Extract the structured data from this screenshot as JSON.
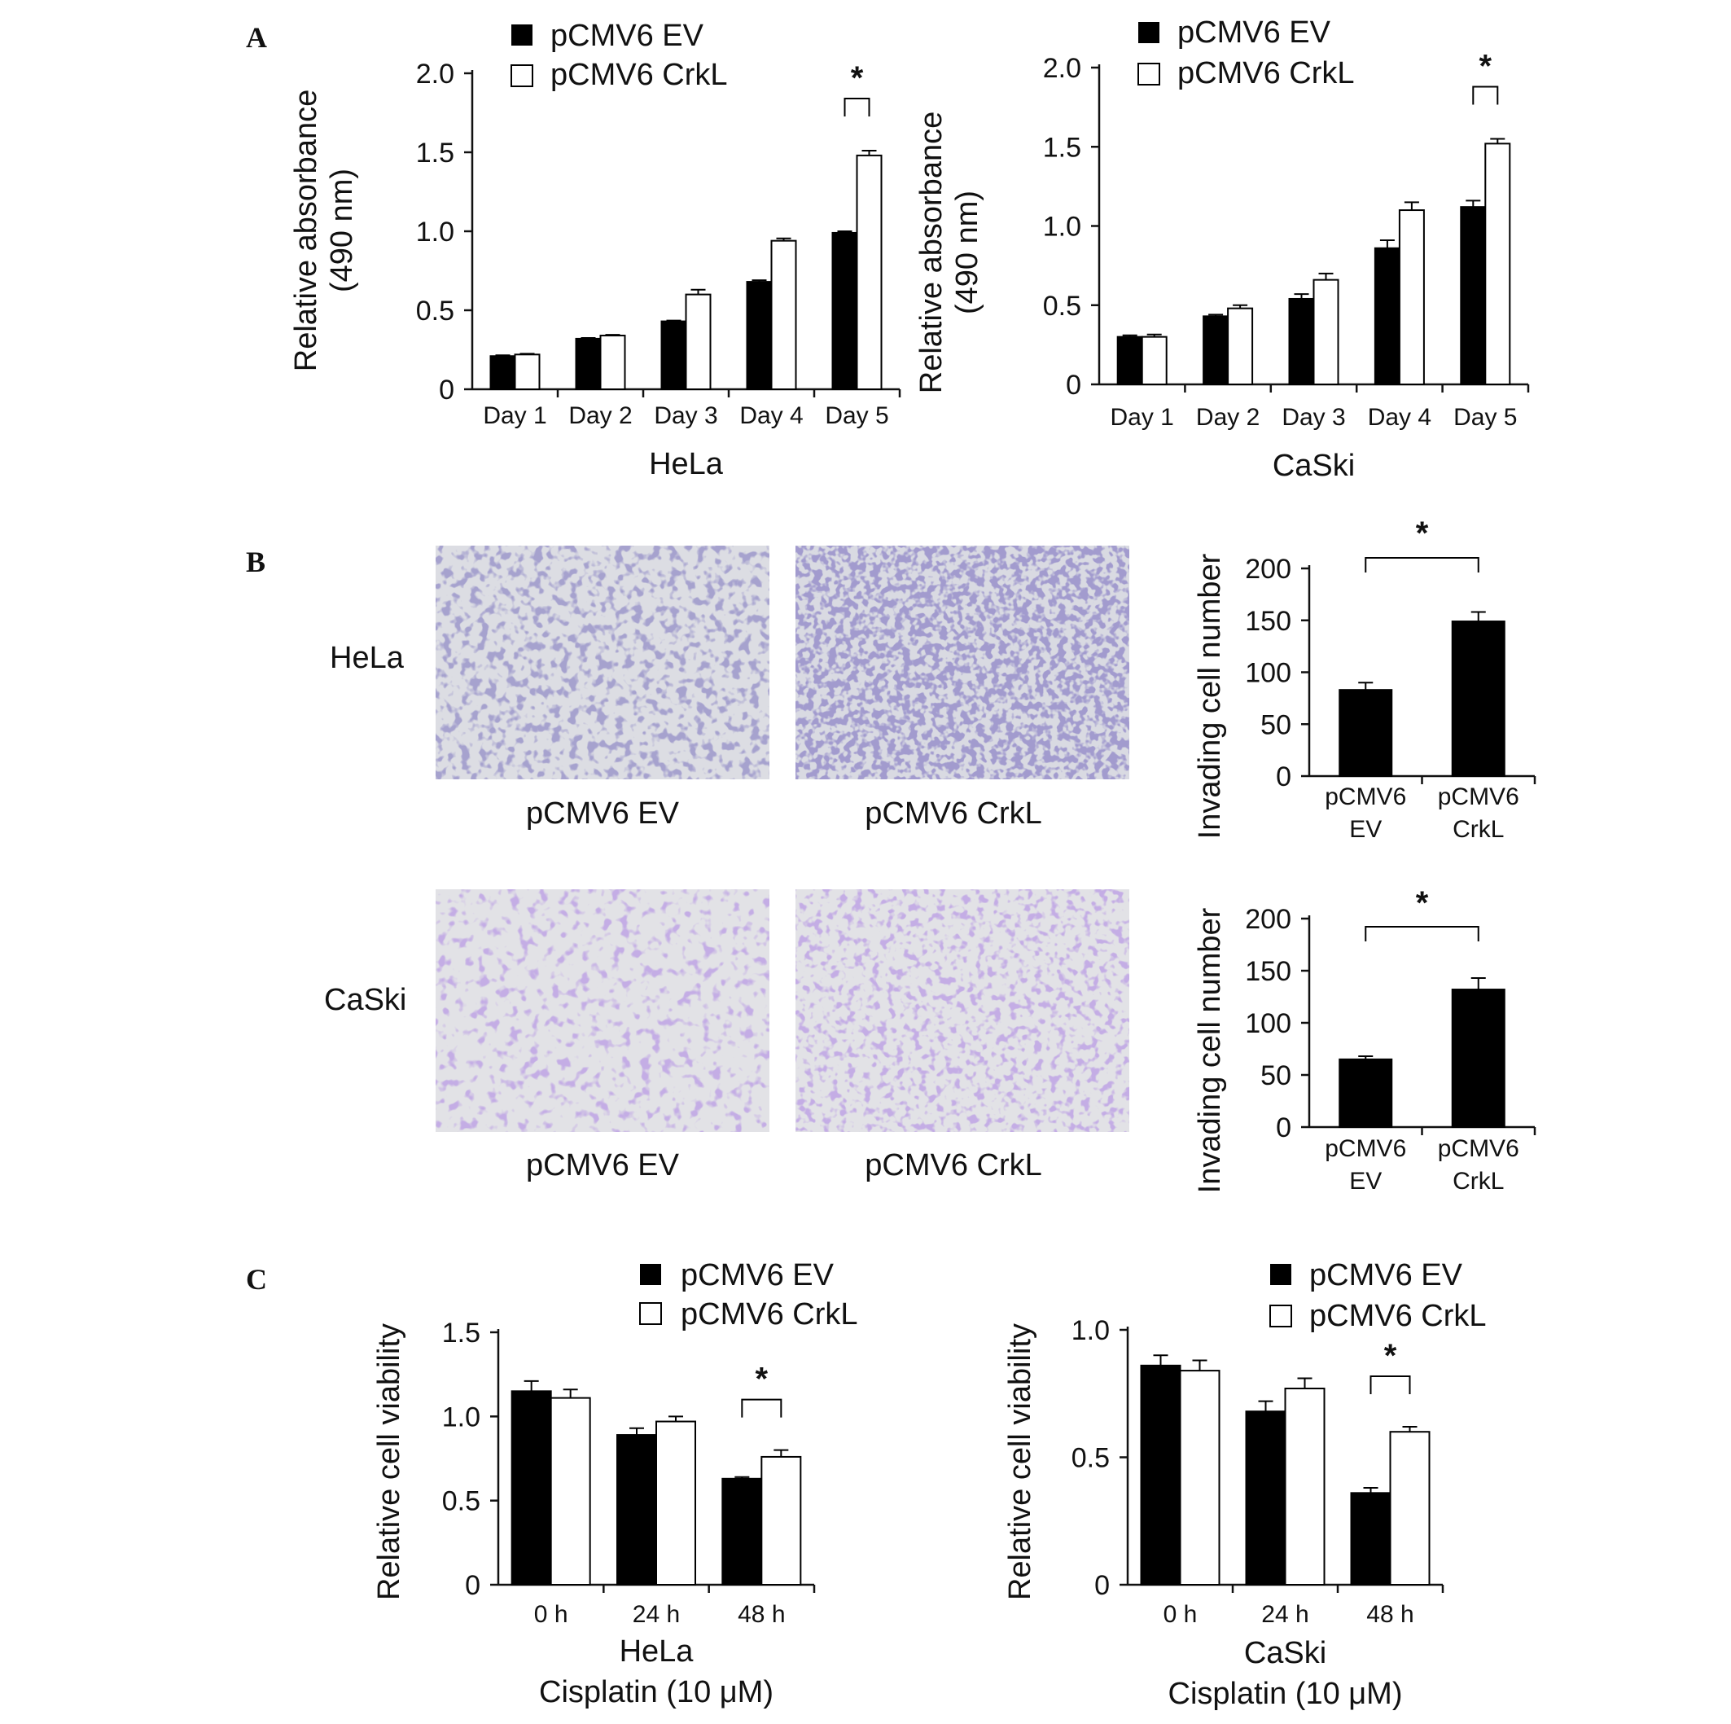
{
  "panel_labels": [
    "A",
    "B",
    "C"
  ],
  "legend": {
    "ev": "pCMV6 EV",
    "crkl": "pCMV6 CrkL"
  },
  "colors": {
    "ev": "#000000",
    "crkl": "#ffffff",
    "axis": "#111111"
  },
  "significance_marker": "*",
  "panel_b": {
    "row_labels": [
      "HeLa",
      "CaSki"
    ],
    "image_captions": [
      "pCMV6 EV",
      "pCMV6 CrkL"
    ]
  },
  "chart_data": [
    {
      "id": "A-HeLa",
      "type": "bar",
      "categories": [
        "Day 1",
        "Day 2",
        "Day 3",
        "Day 4",
        "Day 5"
      ],
      "series": [
        {
          "name": "pCMV6 EV",
          "values": [
            0.21,
            0.32,
            0.43,
            0.68,
            0.99
          ],
          "errors": [
            0.005,
            0.005,
            0.005,
            0.01,
            0.01
          ]
        },
        {
          "name": "pCMV6 CrkL",
          "values": [
            0.22,
            0.34,
            0.6,
            0.94,
            1.48
          ],
          "errors": [
            0.005,
            0.005,
            0.03,
            0.015,
            0.03
          ]
        }
      ],
      "ylabel": [
        "Relative absorbance",
        "(490 nm)"
      ],
      "xlabel": [
        "HeLa"
      ],
      "ylim": [
        0,
        2.0
      ],
      "yticks": [
        0,
        0.5,
        1.0,
        1.5,
        2.0
      ],
      "ytick_labels": [
        "0",
        "0.5",
        "1.0",
        "1.5",
        "2.0"
      ],
      "significant": [
        4
      ],
      "legend_position": "top-left",
      "grid": false
    },
    {
      "id": "A-CaSki",
      "type": "bar",
      "categories": [
        "Day 1",
        "Day 2",
        "Day 3",
        "Day 4",
        "Day 5"
      ],
      "series": [
        {
          "name": "pCMV6 EV",
          "values": [
            0.3,
            0.43,
            0.54,
            0.86,
            1.12
          ],
          "errors": [
            0.01,
            0.01,
            0.03,
            0.05,
            0.04
          ]
        },
        {
          "name": "pCMV6 CrkL",
          "values": [
            0.3,
            0.48,
            0.66,
            1.1,
            1.52
          ],
          "errors": [
            0.015,
            0.02,
            0.04,
            0.05,
            0.03
          ]
        }
      ],
      "ylabel": [
        "Relative absorbance",
        "(490 nm)"
      ],
      "xlabel": [
        "CaSki"
      ],
      "ylim": [
        0,
        2.0
      ],
      "yticks": [
        0,
        0.5,
        1.0,
        1.5,
        2.0
      ],
      "ytick_labels": [
        "0",
        "0.5",
        "1.0",
        "1.5",
        "2.0"
      ],
      "significant": [
        4
      ],
      "legend_position": "top-left",
      "grid": false
    },
    {
      "id": "B-HeLa",
      "type": "bar",
      "categories": [
        [
          "pCMV6",
          "EV"
        ],
        [
          "pCMV6",
          "CrkL"
        ]
      ],
      "series": [
        {
          "values": [
            83,
            149
          ],
          "errors": [
            7,
            9
          ]
        }
      ],
      "ylabel": [
        "Invading cell number"
      ],
      "xlabel": [],
      "ylim": [
        0,
        200
      ],
      "yticks": [
        0,
        50,
        100,
        150,
        200
      ],
      "ytick_labels": [
        "0",
        "50",
        "100",
        "150",
        "200"
      ],
      "significant": [
        [
          0,
          1
        ]
      ],
      "grid": false
    },
    {
      "id": "B-CaSki",
      "type": "bar",
      "categories": [
        [
          "pCMV6",
          "EV"
        ],
        [
          "pCMV6",
          "CrkL"
        ]
      ],
      "series": [
        {
          "values": [
            65,
            132
          ],
          "errors": [
            3,
            11
          ]
        }
      ],
      "ylabel": [
        "Invading cell number"
      ],
      "xlabel": [],
      "ylim": [
        0,
        200
      ],
      "yticks": [
        0,
        50,
        100,
        150,
        200
      ],
      "ytick_labels": [
        "0",
        "50",
        "100",
        "150",
        "200"
      ],
      "significant": [
        [
          0,
          1
        ]
      ],
      "grid": false
    },
    {
      "id": "C-HeLa",
      "type": "bar",
      "categories": [
        "0 h",
        "24 h",
        "48 h"
      ],
      "series": [
        {
          "name": "pCMV6 EV",
          "values": [
            1.15,
            0.89,
            0.63
          ],
          "errors": [
            0.06,
            0.04,
            0.01
          ]
        },
        {
          "name": "pCMV6 CrkL",
          "values": [
            1.11,
            0.97,
            0.76
          ],
          "errors": [
            0.05,
            0.03,
            0.04
          ]
        }
      ],
      "ylabel": [
        "Relative cell viability"
      ],
      "xlabel": [
        "HeLa",
        "Cisplatin (10 μM)"
      ],
      "ylim": [
        0,
        1.5
      ],
      "yticks": [
        0,
        0.5,
        1.0,
        1.5
      ],
      "ytick_labels": [
        "0",
        "0.5",
        "1.0",
        "1.5"
      ],
      "significant": [
        2
      ],
      "legend_position": "top-left",
      "grid": false
    },
    {
      "id": "C-CaSki",
      "type": "bar",
      "categories": [
        "0 h",
        "24 h",
        "48 h"
      ],
      "series": [
        {
          "name": "pCMV6 EV",
          "values": [
            0.86,
            0.68,
            0.36
          ],
          "errors": [
            0.04,
            0.04,
            0.02
          ]
        },
        {
          "name": "pCMV6 CrkL",
          "values": [
            0.84,
            0.77,
            0.6
          ],
          "errors": [
            0.04,
            0.04,
            0.02
          ]
        }
      ],
      "ylabel": [
        "Relative cell viability"
      ],
      "xlabel": [
        "CaSki",
        "Cisplatin (10 μM)"
      ],
      "ylim": [
        0,
        1.0
      ],
      "yticks": [
        0,
        0.5,
        1.0
      ],
      "ytick_labels": [
        "0",
        "0.5",
        "1.0"
      ],
      "significant": [
        2
      ],
      "legend_position": "top-left",
      "grid": false
    }
  ]
}
